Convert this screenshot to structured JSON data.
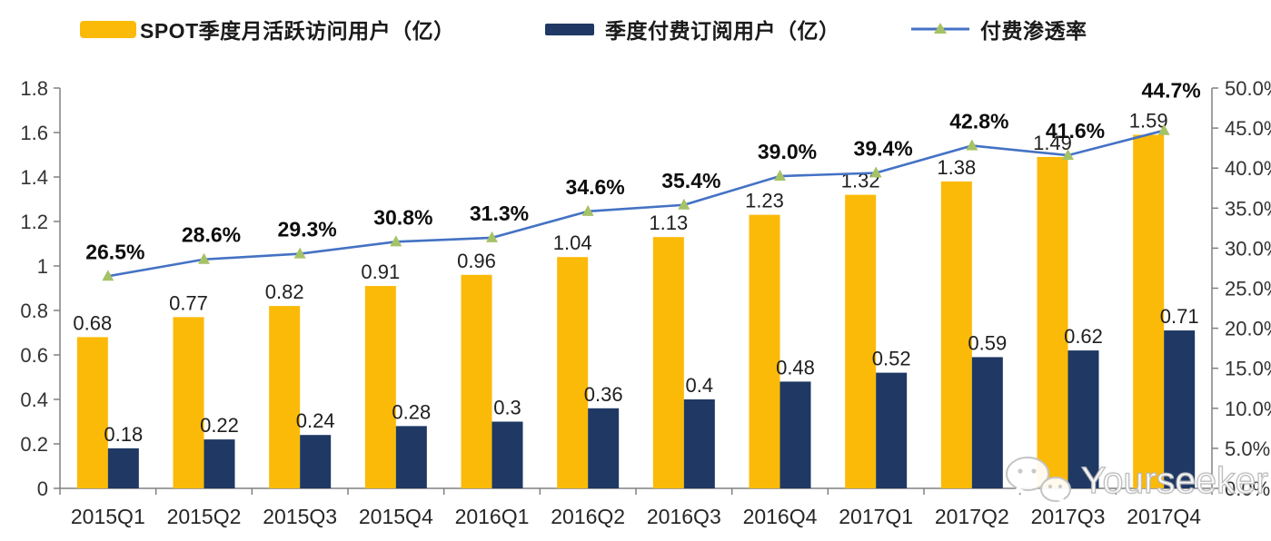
{
  "chart_data": {
    "type": "bar",
    "subtype": "combo-bar-line",
    "title": "",
    "xlabel": "",
    "ylabel": "",
    "grid": false,
    "legend_position": "top",
    "categories": [
      "2015Q1",
      "2015Q2",
      "2015Q3",
      "2015Q4",
      "2016Q1",
      "2016Q2",
      "2016Q3",
      "2016Q4",
      "2017Q1",
      "2017Q2",
      "2017Q3",
      "2017Q4"
    ],
    "series": [
      {
        "name": "SPOT季度月活跃访问用户（亿）",
        "type": "bar",
        "axis": "left",
        "color": "#FBBA07",
        "values": [
          0.68,
          0.77,
          0.82,
          0.91,
          0.96,
          1.04,
          1.13,
          1.23,
          1.32,
          1.38,
          1.49,
          1.59
        ],
        "labels": [
          "0.68",
          "0.77",
          "0.82",
          "0.91",
          "0.96",
          "1.04",
          "1.13",
          "1.23",
          "1.32",
          "1.38",
          "1.49",
          "1.59"
        ]
      },
      {
        "name": "季度付费订阅用户（亿）",
        "type": "bar",
        "axis": "left",
        "color": "#1F3864",
        "values": [
          0.18,
          0.22,
          0.24,
          0.28,
          0.3,
          0.36,
          0.4,
          0.48,
          0.52,
          0.59,
          0.62,
          0.71
        ],
        "labels": [
          "0.18",
          "0.22",
          "0.24",
          "0.28",
          "0.3",
          "0.36",
          "0.4",
          "0.48",
          "0.52",
          "0.59",
          "0.62",
          "0.71"
        ]
      },
      {
        "name": "付费渗透率",
        "type": "line",
        "axis": "right",
        "color": "#4472C4",
        "marker": "triangle",
        "marker_color": "#A5C266",
        "values": [
          26.5,
          28.6,
          29.3,
          30.8,
          31.3,
          34.6,
          35.4,
          39.0,
          39.4,
          42.8,
          41.6,
          44.7
        ],
        "labels": [
          "26.5%",
          "28.6%",
          "29.3%",
          "30.8%",
          "31.3%",
          "34.6%",
          "35.4%",
          "39.0%",
          "39.4%",
          "42.8%",
          "41.6%",
          "44.7%"
        ]
      }
    ],
    "left_axis": {
      "min": 0,
      "max": 1.8,
      "step": 0.2,
      "tick_labels": [
        "0",
        "0.2",
        "0.4",
        "0.6",
        "0.8",
        "1",
        "1.2",
        "1.4",
        "1.6",
        "1.8"
      ]
    },
    "right_axis": {
      "min": 0,
      "max": 50,
      "step": 5,
      "tick_labels": [
        "0.0%",
        "5.0%",
        "10.0%",
        "15.0%",
        "20.0%",
        "25.0%",
        "30.0%",
        "35.0%",
        "40.0%",
        "45.0%",
        "50.0%"
      ]
    },
    "axis_color": "#808080"
  },
  "watermark": {
    "brand": "Yourseeker",
    "icon": "wechat-icon"
  }
}
